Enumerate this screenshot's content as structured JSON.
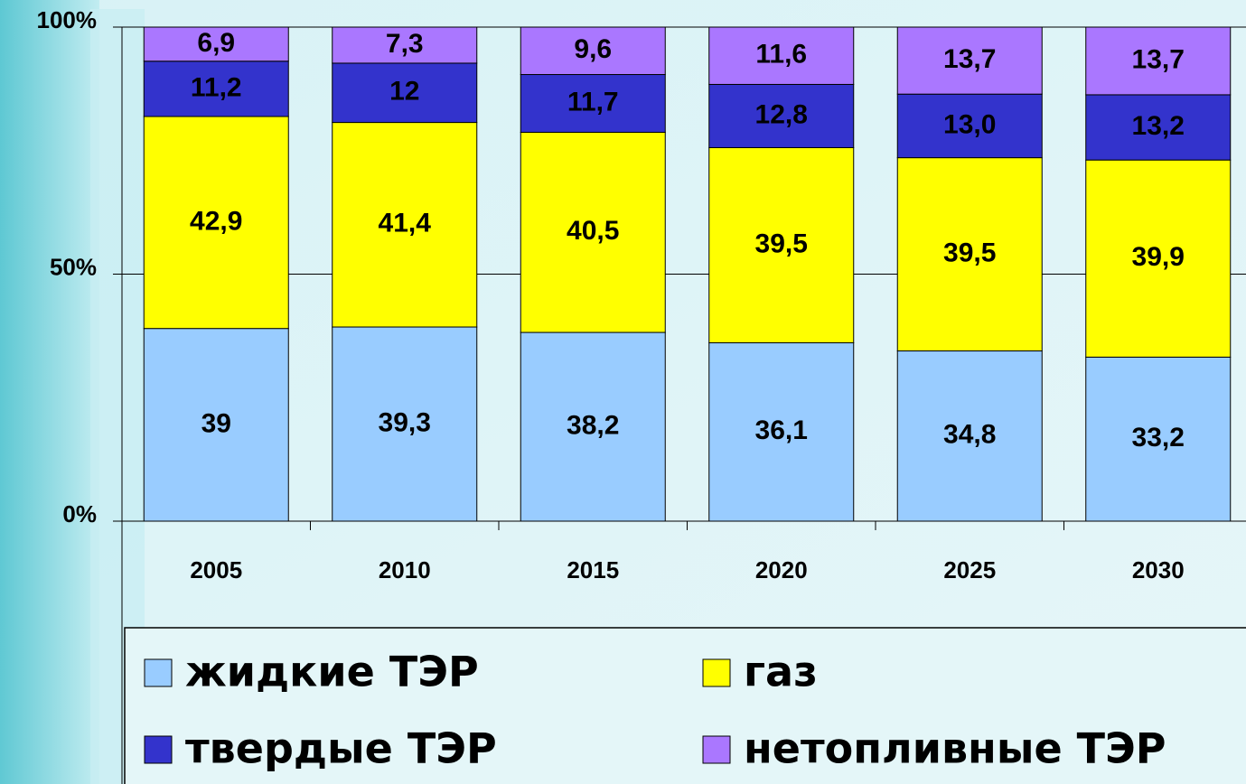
{
  "chart_data": {
    "type": "bar",
    "stack": "percent",
    "categories": [
      "2005",
      "2010",
      "2015",
      "2020",
      "2025",
      "2030"
    ],
    "series": [
      {
        "name": "жидкие ТЭР",
        "color": "#99ccff",
        "values": [
          39,
          39.3,
          38.2,
          36.1,
          34.8,
          33.2
        ],
        "value_labels": [
          "39",
          "39,3",
          "38,2",
          "36,1",
          "34,8",
          "33,2"
        ]
      },
      {
        "name": "газ",
        "color": "#ffff00",
        "values": [
          42.9,
          41.4,
          40.5,
          39.5,
          39.5,
          39.9
        ],
        "value_labels": [
          "42,9",
          "41,4",
          "40,5",
          "39,5",
          "39,5",
          "39,9"
        ]
      },
      {
        "name": "твердые ТЭР",
        "color": "#3333cc",
        "values": [
          11.2,
          12,
          11.7,
          12.8,
          13.0,
          13.2
        ],
        "value_labels": [
          "11,2",
          "12",
          "11,7",
          "12,8",
          "13,0",
          "13,2"
        ]
      },
      {
        "name": "нетопливные ТЭР",
        "color": "#aa77ff",
        "values": [
          6.9,
          7.3,
          9.6,
          11.6,
          13.7,
          13.7
        ],
        "value_labels": [
          "6,9",
          "7,3",
          "9,6",
          "11,6",
          "13,7",
          "13,7"
        ]
      }
    ],
    "ylim": [
      0,
      100
    ],
    "yticks": [
      {
        "value": 0,
        "label": "0%"
      },
      {
        "value": 50,
        "label": "50%"
      },
      {
        "value": 100,
        "label": "100%"
      }
    ],
    "grid": true
  }
}
